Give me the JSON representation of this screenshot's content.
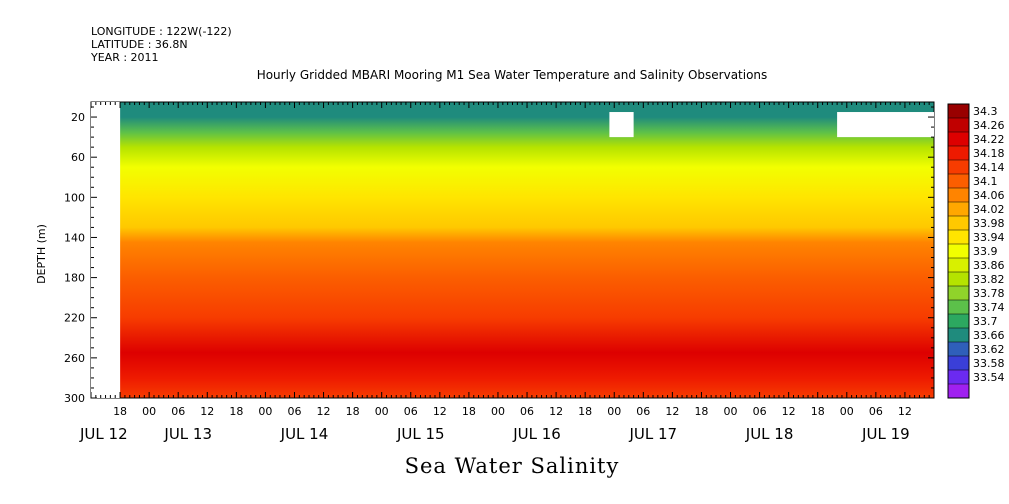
{
  "header": {
    "longitude": "LONGITUDE : 122W(-122)",
    "latitude": "LATITUDE : 36.8N",
    "year": "YEAR : 2011"
  },
  "chart_data": {
    "type": "heatmap",
    "title": "Hourly Gridded MBARI Mooring M1 Sea Water Temperature and Salinity Observations",
    "bottom_title": "Sea Water Salinity",
    "ylabel": "DEPTH (m)",
    "y_ticks": [
      20,
      60,
      100,
      140,
      180,
      220,
      260,
      300
    ],
    "ylim": [
      300,
      5
    ],
    "x_hour_labels": [
      "18",
      "00",
      "06",
      "12",
      "18",
      "00",
      "06",
      "12",
      "18",
      "00",
      "06",
      "12",
      "18",
      "00",
      "06",
      "12",
      "18",
      "00",
      "06",
      "12",
      "18",
      "00",
      "06",
      "12",
      "18",
      "00",
      "06",
      "12"
    ],
    "x_day_labels": [
      "JUL 12",
      "JUL 13",
      "JUL 14",
      "JUL 15",
      "JUL 16",
      "JUL 17",
      "JUL 18",
      "JUL 19"
    ],
    "x_range_hours": [
      "JUL 12 12:00",
      "JUL 19 18:00"
    ],
    "data_start": "JUL 12 18:00",
    "missing_regions": [
      {
        "x_start": "JUL 12 12:00",
        "x_end": "JUL 12 18:00",
        "depth_start": 5,
        "depth_end": 300
      },
      {
        "x_start": "JUL 16 23:00",
        "x_end": "JUL 17 04:00",
        "depth_start": 15,
        "depth_end": 40
      },
      {
        "x_start": "JUL 18 22:00",
        "x_end": "JUL 19 18:00",
        "depth_start": 15,
        "depth_end": 40
      }
    ],
    "colorbar_levels": [
      "34.3",
      "34.26",
      "34.22",
      "34.18",
      "34.14",
      "34.1",
      "34.06",
      "34.02",
      "33.98",
      "33.94",
      "33.9",
      "33.86",
      "33.82",
      "33.78",
      "33.74",
      "33.7",
      "33.66",
      "33.62",
      "33.58",
      "33.54"
    ],
    "colorbar_colors": [
      "#990000",
      "#c00000",
      "#dd0000",
      "#ee1a00",
      "#f73c00",
      "#fb5e00",
      "#ff8400",
      "#ffa700",
      "#ffc800",
      "#ffe500",
      "#f2ff00",
      "#d8f000",
      "#b5e300",
      "#90d32a",
      "#5cc04a",
      "#2ca860",
      "#1f8b7d",
      "#2f5fba",
      "#3a3fd8",
      "#6b2af0",
      "#a020f0"
    ],
    "depth_profile": [
      {
        "depth": 5,
        "value": 33.66
      },
      {
        "depth": 20,
        "value": 33.68
      },
      {
        "depth": 35,
        "value": 33.76
      },
      {
        "depth": 50,
        "value": 33.83
      },
      {
        "depth": 70,
        "value": 33.9
      },
      {
        "depth": 100,
        "value": 33.95
      },
      {
        "depth": 130,
        "value": 34.0
      },
      {
        "depth": 145,
        "value": 34.08
      },
      {
        "depth": 180,
        "value": 34.1
      },
      {
        "depth": 220,
        "value": 34.15
      },
      {
        "depth": 255,
        "value": 34.22
      },
      {
        "depth": 280,
        "value": 34.2
      },
      {
        "depth": 300,
        "value": 34.17
      }
    ]
  }
}
